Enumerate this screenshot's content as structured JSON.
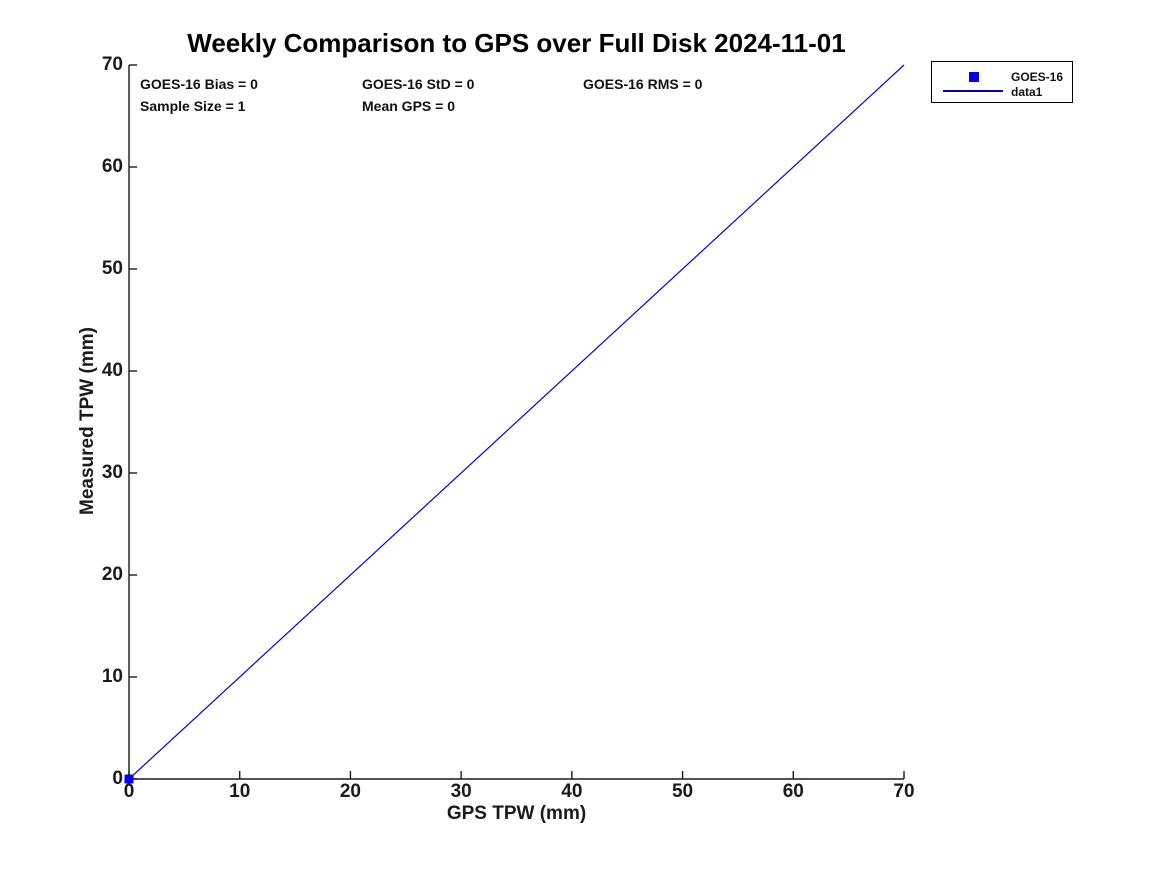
{
  "figure": {
    "background": "#ffffff"
  },
  "chart_data": {
    "type": "line",
    "title": "Weekly Comparison to GPS over Full Disk 2024-11-01",
    "xlabel": "GPS TPW (mm)",
    "ylabel": "Measured TPW (mm)",
    "xlim": [
      0,
      70
    ],
    "ylim": [
      0,
      70
    ],
    "xticks": [
      0,
      10,
      20,
      30,
      40,
      50,
      60,
      70
    ],
    "yticks": [
      0,
      10,
      20,
      30,
      40,
      50,
      60,
      70
    ],
    "grid": false,
    "axis_color": "#1a1a1a",
    "series": [
      {
        "name": "GOES-16",
        "type": "scatter",
        "marker": "square",
        "color": "#0000ee",
        "points": [
          [
            0,
            0
          ]
        ]
      },
      {
        "name": "data1",
        "type": "line",
        "color": "#0000dd",
        "points": [
          [
            0,
            0
          ],
          [
            70,
            70
          ]
        ]
      }
    ],
    "legend": {
      "position": "outside-top-right",
      "entries": [
        {
          "label": "GOES-16",
          "symbol": "square-marker",
          "color": "#0000ee"
        },
        {
          "label": "data1",
          "symbol": "line",
          "color": "#0000bb"
        }
      ]
    },
    "annotations": {
      "bias": "GOES-16 Bias = 0",
      "std": "GOES-16 StD = 0",
      "rms": "GOES-16 RMS = 0",
      "sample_size": "Sample Size = 1",
      "mean_gps": "Mean GPS = 0"
    }
  }
}
